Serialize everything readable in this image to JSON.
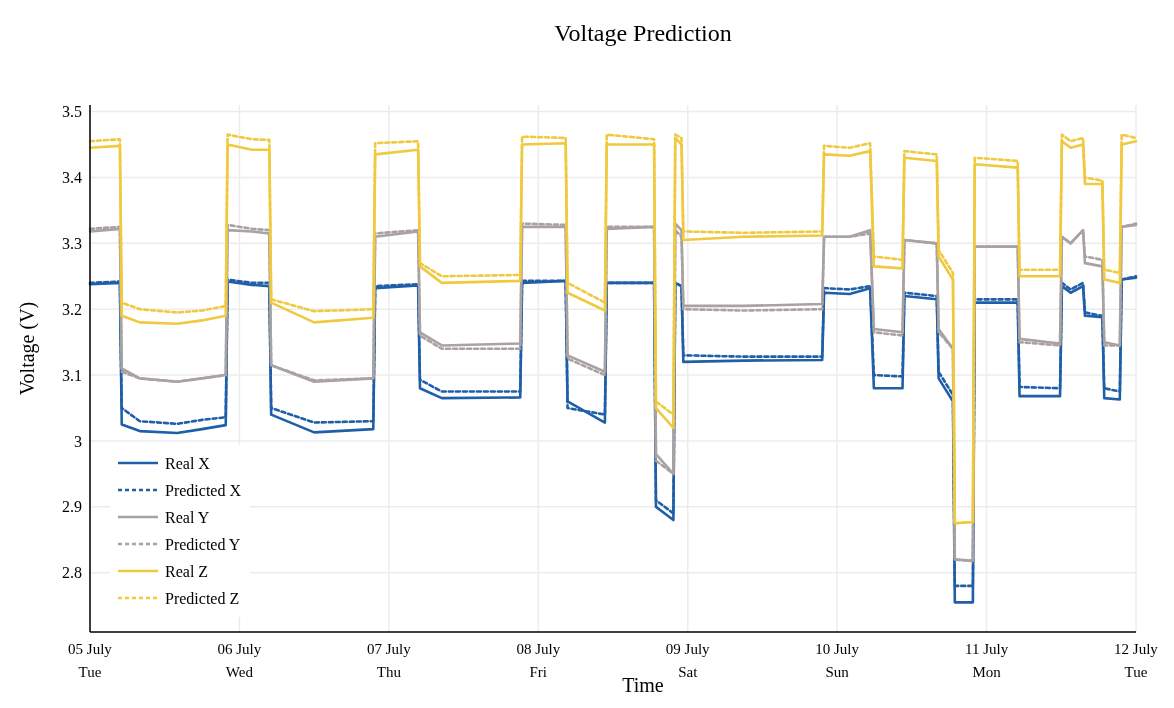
{
  "chart_data": {
    "type": "line",
    "title": "Voltage Prediction",
    "xlabel": "Time",
    "ylabel": "Voltage (V)",
    "x": [
      "--07-05T00:00",
      "--07-05T04:48",
      "--07-05T05:06",
      "--07-05T08:00",
      "--07-05T14:00",
      "--07-05T18:00",
      "--07-05T21:48",
      "--07-05T22:06",
      "--07-06T02:00",
      "--07-06T04:48",
      "--07-06T05:06",
      "--07-06T12:00",
      "--07-06T21:30",
      "--07-06T21:48",
      "--07-07T04:42",
      "--07-07T05:00",
      "--07-07T08:30",
      "--07-07T21:06",
      "--07-07T21:24",
      "--07-08T04:24",
      "--07-08T04:42",
      "--07-08T10:42",
      "--07-08T11:00",
      "--07-08T18:36",
      "--07-08T18:54",
      "--07-08T21:42",
      "--07-08T22:00",
      "--07-08T23:00",
      "--07-08T23:18",
      "--07-09T09:00",
      "--07-09T21:36",
      "--07-09T21:54",
      "--07-10T02:00",
      "--07-10T05:18",
      "--07-10T05:54",
      "--07-10T10:30",
      "--07-10T10:48",
      "--07-10T16:00",
      "--07-10T16:18",
      "--07-10T18:36",
      "--07-10T18:54",
      "--07-10T21:48",
      "--07-10T22:06",
      "--07-11T05:00",
      "--07-11T05:18",
      "--07-11T11:48",
      "--07-11T12:06",
      "--07-11T13:30",
      "--07-11T15:30",
      "--07-11T15:48",
      "--07-11T18:36",
      "--07-11T18:54",
      "--07-11T21:24",
      "--07-11T21:42",
      "--07-12T00:00"
    ],
    "series": [
      {
        "name": "Real X",
        "color": "#1f5fa8",
        "line_style": "solid",
        "values": [
          3.238,
          3.24,
          3.025,
          3.015,
          3.012,
          3.018,
          3.024,
          3.242,
          3.237,
          3.235,
          3.04,
          3.013,
          3.018,
          3.232,
          3.236,
          3.08,
          3.065,
          3.066,
          3.24,
          3.243,
          3.06,
          3.028,
          3.24,
          3.24,
          2.9,
          2.88,
          3.24,
          3.235,
          3.12,
          3.122,
          3.123,
          3.225,
          3.223,
          3.232,
          3.08,
          3.08,
          3.22,
          3.215,
          3.095,
          3.06,
          2.755,
          2.755,
          3.21,
          3.21,
          3.068,
          3.068,
          3.235,
          3.225,
          3.235,
          3.19,
          3.188,
          3.065,
          3.063,
          3.245,
          3.248
        ]
      },
      {
        "name": "Predicted X",
        "color": "#1f5fa8",
        "line_style": "dotted",
        "values": [
          3.24,
          3.242,
          3.05,
          3.03,
          3.026,
          3.032,
          3.036,
          3.245,
          3.24,
          3.24,
          3.05,
          3.028,
          3.03,
          3.235,
          3.238,
          3.093,
          3.075,
          3.075,
          3.243,
          3.243,
          3.05,
          3.04,
          3.24,
          3.24,
          2.91,
          2.89,
          3.24,
          3.235,
          3.13,
          3.128,
          3.128,
          3.232,
          3.23,
          3.235,
          3.1,
          3.098,
          3.225,
          3.22,
          3.105,
          3.07,
          2.78,
          2.78,
          3.215,
          3.215,
          3.082,
          3.08,
          3.24,
          3.23,
          3.24,
          3.195,
          3.19,
          3.08,
          3.075,
          3.245,
          3.25
        ]
      },
      {
        "name": "Real Y",
        "color": "#aaa2a0",
        "line_style": "solid",
        "values": [
          3.318,
          3.322,
          3.11,
          3.095,
          3.09,
          3.095,
          3.1,
          3.32,
          3.318,
          3.315,
          3.115,
          3.09,
          3.095,
          3.31,
          3.318,
          3.165,
          3.145,
          3.148,
          3.325,
          3.325,
          3.13,
          3.105,
          3.322,
          3.325,
          2.98,
          2.95,
          3.33,
          3.32,
          3.205,
          3.205,
          3.208,
          3.31,
          3.31,
          3.32,
          3.17,
          3.165,
          3.305,
          3.3,
          3.17,
          3.14,
          2.82,
          2.818,
          3.295,
          3.295,
          3.155,
          3.148,
          3.31,
          3.3,
          3.32,
          3.27,
          3.265,
          3.15,
          3.145,
          3.325,
          3.328
        ]
      },
      {
        "name": "Predicted Y",
        "color": "#aaa2a0",
        "line_style": "dotted",
        "values": [
          3.322,
          3.325,
          3.105,
          3.095,
          3.09,
          3.095,
          3.1,
          3.328,
          3.322,
          3.32,
          3.115,
          3.092,
          3.095,
          3.315,
          3.32,
          3.16,
          3.14,
          3.14,
          3.33,
          3.328,
          3.125,
          3.1,
          3.325,
          3.325,
          2.97,
          2.95,
          3.32,
          3.31,
          3.2,
          3.198,
          3.2,
          3.31,
          3.31,
          3.315,
          3.165,
          3.16,
          3.305,
          3.3,
          3.165,
          3.14,
          2.82,
          2.818,
          3.295,
          3.295,
          3.15,
          3.145,
          3.31,
          3.3,
          3.32,
          3.28,
          3.275,
          3.145,
          3.145,
          3.325,
          3.33
        ]
      },
      {
        "name": "Real Z",
        "color": "#f0c93e",
        "line_style": "solid",
        "values": [
          3.445,
          3.448,
          3.19,
          3.18,
          3.178,
          3.183,
          3.19,
          3.45,
          3.442,
          3.442,
          3.21,
          3.18,
          3.187,
          3.435,
          3.442,
          3.265,
          3.24,
          3.243,
          3.45,
          3.452,
          3.225,
          3.198,
          3.45,
          3.45,
          3.05,
          3.02,
          3.46,
          3.45,
          3.305,
          3.31,
          3.312,
          3.435,
          3.433,
          3.44,
          3.265,
          3.262,
          3.43,
          3.425,
          3.28,
          3.245,
          2.875,
          2.877,
          3.42,
          3.415,
          3.25,
          3.25,
          3.455,
          3.445,
          3.45,
          3.39,
          3.39,
          3.245,
          3.24,
          3.45,
          3.455
        ]
      },
      {
        "name": "Predicted Z",
        "color": "#f0c93e",
        "line_style": "dotted",
        "values": [
          3.455,
          3.458,
          3.21,
          3.2,
          3.195,
          3.198,
          3.205,
          3.465,
          3.458,
          3.457,
          3.215,
          3.197,
          3.2,
          3.452,
          3.455,
          3.27,
          3.25,
          3.252,
          3.462,
          3.46,
          3.24,
          3.21,
          3.465,
          3.458,
          3.06,
          3.04,
          3.465,
          3.46,
          3.318,
          3.316,
          3.318,
          3.448,
          3.445,
          3.452,
          3.28,
          3.275,
          3.44,
          3.435,
          3.29,
          3.255,
          2.875,
          2.877,
          3.43,
          3.425,
          3.26,
          3.26,
          3.465,
          3.455,
          3.46,
          3.4,
          3.395,
          3.26,
          3.255,
          3.465,
          3.46
        ]
      }
    ],
    "xlim": [
      "--07-05",
      "--07-12"
    ],
    "xticks": [
      {
        "value": "--07-05",
        "label": "05 July\nTue"
      },
      {
        "value": "--07-06",
        "label": "06 July\nWed"
      },
      {
        "value": "--07-07",
        "label": "07 July\nThu"
      },
      {
        "value": "--07-08",
        "label": "08 July\nFri"
      },
      {
        "value": "--07-09",
        "label": "09 July\nSat"
      },
      {
        "value": "--07-10",
        "label": "10 July\nSun"
      },
      {
        "value": "--07-11",
        "label": "11 July\nMon"
      },
      {
        "value": "--07-12",
        "label": "12 July\nTue"
      }
    ],
    "ylim": [
      2.71,
      3.51
    ],
    "yticks": [
      2.8,
      2.9,
      3,
      3.1,
      3.2,
      3.3,
      3.4,
      3.5
    ],
    "grid": true,
    "legend": "bottom left"
  }
}
